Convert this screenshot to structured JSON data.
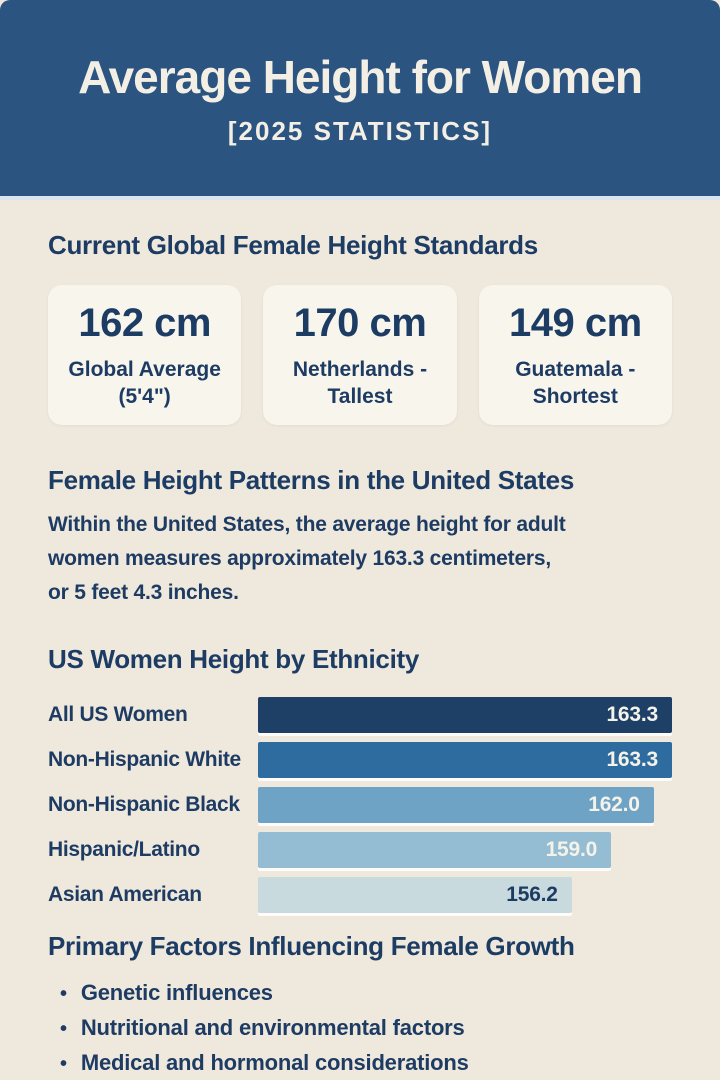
{
  "page": {
    "background": "#efe9dd",
    "accent_navy": "#1d3c64"
  },
  "header": {
    "title": "Average Height for Women",
    "subtitle": "[2025 STATISTICS]",
    "bg_color": "#2b5480",
    "text_color": "#f3efe5",
    "divider_color": "#d9e6f0"
  },
  "global_section": {
    "heading": "Current Global Female Height Standards",
    "cards": [
      {
        "value": "162 cm",
        "label_line1": "Global Average",
        "label_line2": "(5'4\")"
      },
      {
        "value": "170 cm",
        "label_line1": "Netherlands -",
        "label_line2": "Tallest"
      },
      {
        "value": "149 cm",
        "label_line1": "Guatemala -",
        "label_line2": "Shortest"
      }
    ],
    "card_bg": "#f8f5ed"
  },
  "us_section": {
    "heading": "Female Height Patterns in the United States",
    "lines": [
      "Within the United States, the average height for adult",
      "women measures approximately 163.3 centimeters,",
      "or 5 feet 4.3 inches."
    ]
  },
  "chart_data": {
    "type": "bar",
    "orientation": "horizontal",
    "title": "US Women Height by Ethnicity",
    "categories": [
      "All US Women",
      "Non-Hispanic White",
      "Non-Hispanic Black",
      "Hispanic/Latino",
      "Asian American"
    ],
    "values": [
      163.3,
      163.3,
      162.0,
      159.0,
      156.2
    ],
    "value_labels": [
      "163.3",
      "163.3",
      "162.0",
      "159.0",
      "156.2"
    ],
    "unit": "cm",
    "xlim": [
      134,
      163.3
    ],
    "grid": false,
    "legend": false,
    "bar_colors": [
      "#1e3f66",
      "#2e6b9e",
      "#6fa3c6",
      "#94bdd3",
      "#c9dade"
    ],
    "value_label_colors": [
      "#f5f2ea",
      "#f5f2ea",
      "#f5f2ea",
      "#f5f2ea",
      "#1d3c64"
    ]
  },
  "factors": {
    "heading": "Primary Factors Influencing Female Growth",
    "bullet": "•",
    "items": [
      "Genetic influences",
      "Nutritional and environmental factors",
      "Medical and hormonal considerations"
    ]
  }
}
